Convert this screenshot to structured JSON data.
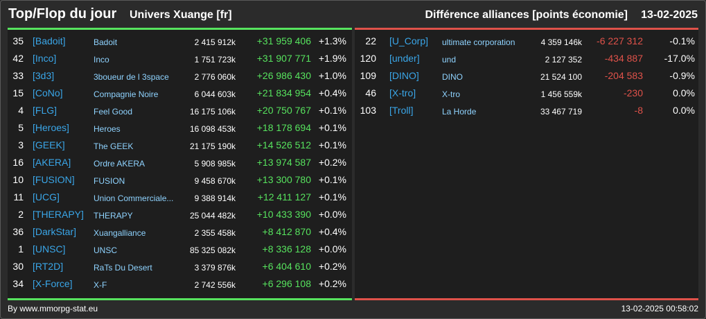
{
  "header": {
    "title": "Top/Flop du jour",
    "server": "Univers Xuange [fr]",
    "subtitle": "Différence alliances [points économie]",
    "date": "13-02-2025"
  },
  "colors": {
    "background": "#2b2b2b",
    "panel": "#1e1e1e",
    "positive": "#57e35e",
    "negative": "#e0524a",
    "tag": "#3aa6e8",
    "name": "#8fd3ff"
  },
  "top": [
    {
      "rank": "35",
      "tag": "[Badoit]",
      "name": "Badoit",
      "points": "2 415 912k",
      "diff": "+31 959 406",
      "pct": "+1.3%"
    },
    {
      "rank": "42",
      "tag": "[Inco]",
      "name": "Inco",
      "points": "1 751 723k",
      "diff": "+31 907 771",
      "pct": "+1.9%"
    },
    {
      "rank": "33",
      "tag": "[3d3]",
      "name": "3boueur de l 3space",
      "points": "2 776 060k",
      "diff": "+26 986 430",
      "pct": "+1.0%"
    },
    {
      "rank": "15",
      "tag": "[CoNo]",
      "name": "Compagnie Noire",
      "points": "6 044 603k",
      "diff": "+21 834 954",
      "pct": "+0.4%"
    },
    {
      "rank": "4",
      "tag": "[FLG]",
      "name": "Feel Good",
      "points": "16 175 106k",
      "diff": "+20 750 767",
      "pct": "+0.1%"
    },
    {
      "rank": "5",
      "tag": "[Heroes]",
      "name": "Heroes",
      "points": "16 098 453k",
      "diff": "+18 178 694",
      "pct": "+0.1%"
    },
    {
      "rank": "3",
      "tag": "[GEEK]",
      "name": "The GEEK",
      "points": "21 175 190k",
      "diff": "+14 526 512",
      "pct": "+0.1%"
    },
    {
      "rank": "16",
      "tag": "[AKERA]",
      "name": "Ordre AKERA",
      "points": "5 908 985k",
      "diff": "+13 974 587",
      "pct": "+0.2%"
    },
    {
      "rank": "10",
      "tag": "[FUSION]",
      "name": "FUSION",
      "points": "9 458 670k",
      "diff": "+13 300 780",
      "pct": "+0.1%"
    },
    {
      "rank": "11",
      "tag": "[UCG]",
      "name": "Union Commerciale...",
      "points": "9 388 914k",
      "diff": "+12 411 127",
      "pct": "+0.1%"
    },
    {
      "rank": "2",
      "tag": "[THERAPY]",
      "name": "THERAPY",
      "points": "25 044 482k",
      "diff": "+10 433 390",
      "pct": "+0.0%"
    },
    {
      "rank": "36",
      "tag": "[DarkStar]",
      "name": "Xuangalliance",
      "points": "2 355 458k",
      "diff": "+8 412 870",
      "pct": "+0.4%"
    },
    {
      "rank": "1",
      "tag": "[UNSC]",
      "name": "UNSC",
      "points": "85 325 082k",
      "diff": "+8 336 128",
      "pct": "+0.0%"
    },
    {
      "rank": "30",
      "tag": "[RT2D]",
      "name": "RaTs Du Desert",
      "points": "3 379 876k",
      "diff": "+6 404 610",
      "pct": "+0.2%"
    },
    {
      "rank": "34",
      "tag": "[X-Force]",
      "name": "X-F",
      "points": "2 742 556k",
      "diff": "+6 296 108",
      "pct": "+0.2%"
    }
  ],
  "flop": [
    {
      "rank": "22",
      "tag": "[U_Corp]",
      "name": "ultimate corporation",
      "points": "4 359 146k",
      "diff": "-6 227 312",
      "pct": "-0.1%"
    },
    {
      "rank": "120",
      "tag": "[under]",
      "name": "und",
      "points": "2 127 352",
      "diff": "-434 887",
      "pct": "-17.0%"
    },
    {
      "rank": "109",
      "tag": "[DINO]",
      "name": "DINO",
      "points": "21 524 100",
      "diff": "-204 583",
      "pct": "-0.9%"
    },
    {
      "rank": "46",
      "tag": "[X-tro]",
      "name": "X-tro",
      "points": "1 456 559k",
      "diff": "-230",
      "pct": "0.0%"
    },
    {
      "rank": "103",
      "tag": "[Troll]",
      "name": "La Horde",
      "points": "33 467 719",
      "diff": "-8",
      "pct": "0.0%"
    }
  ],
  "footer": {
    "credit": "By www.mmorpg-stat.eu",
    "timestamp": "13-02-2025 00:58:02"
  }
}
